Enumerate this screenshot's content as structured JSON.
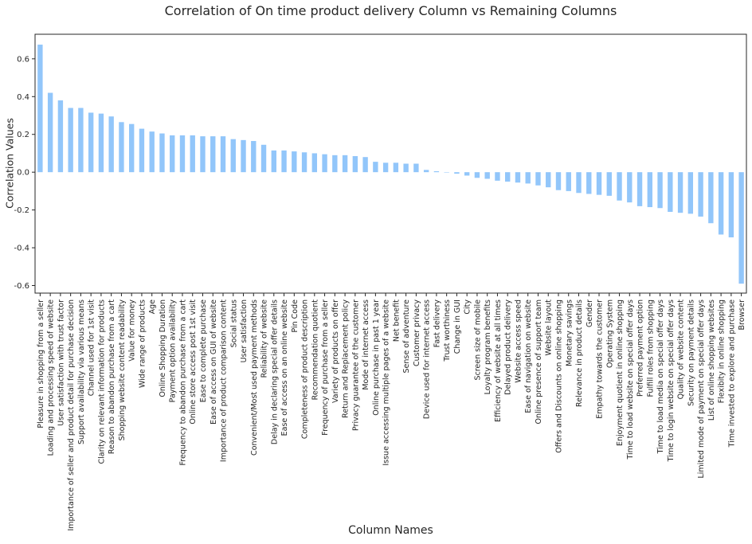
{
  "chart_data": {
    "type": "bar",
    "title": "Correlation of On time product delivery Column vs Remaining Columns",
    "xlabel": "Column Names",
    "ylabel": "Correlation Values",
    "ylim": [
      -0.64,
      0.73
    ],
    "yticks": [
      -0.6,
      -0.4,
      -0.2,
      0.0,
      0.2,
      0.4,
      0.6
    ],
    "ytick_labels": [
      "-0.6",
      "-0.4",
      "-0.2",
      "0.0",
      "0.2",
      "0.4",
      "0.6"
    ],
    "grid": false,
    "bar_color": "#92c6fa",
    "categories": [
      "Pleasure in shopping from a seller",
      "Loading and processing speed of website",
      "User satisfaction with trust factor",
      "Importance of seller and product detail for purchase decision",
      "Support availability via various means",
      "Channel used for 1st visit",
      "Clarity on relevant information for products",
      "Reason to abandon purchase from a cart",
      "Shopping website content readability",
      "Value for money",
      "Wide range of products",
      "Age",
      "Online Shopping Duration",
      "Payment option availability",
      "Frequency to abandon purchase from a cart",
      "Online store access post 1st visit",
      "Ease to complete purchase",
      "Ease of access on GUI of website",
      "Importance of product comparison content",
      "Social status",
      "User satisfaction",
      "Convenient/Most used payment methods",
      "Reliability of website",
      "Delay in declaring special offer details",
      "Ease of access on an online website",
      "Pin Code",
      "Completeness of product description",
      "Recommendation quotient",
      "Frequency of purchase from a seller",
      "Variety of products on offer",
      "Return and Replacement policy",
      "Privacy guarantee of the customer",
      "Mode of internet access",
      "Online purchase in past 1 year",
      "Issue accessing multiple pages of a website",
      "Net benefit",
      "Sense of adventure",
      "Customer privacy",
      "Device used for internet access",
      "Fast delivery",
      "Trust worthiness",
      "Change in GUI",
      "City",
      "Screen size of mobile",
      "Loyalty program benefits",
      "Efficiency of website at all times",
      "Delayed product delivery",
      "Website access speed",
      "Ease of navigation on website",
      "Online presence of support team",
      "Website layout",
      "Offers and Discounts on online shopping",
      "Monetary savings",
      "Relevance in product details",
      "Gender",
      "Empathy towards the customer",
      "Operating System",
      "Enjoyment quotient in online shopping",
      "Time to load website on special offer days",
      "Preferred payment option",
      "Fulfill roles from shopping",
      "Time to load media on special offer days",
      "Time to login website on special offer days",
      "Quality of website content",
      "Security on payment details",
      "Limited mode of payment on special offer days",
      "List of online shopping websites",
      "Flexibity in online shopping",
      "Time invested to explore and purchase",
      "Browser"
    ],
    "values": [
      0.675,
      0.42,
      0.38,
      0.34,
      0.34,
      0.315,
      0.31,
      0.295,
      0.265,
      0.255,
      0.23,
      0.215,
      0.205,
      0.195,
      0.195,
      0.195,
      0.19,
      0.19,
      0.19,
      0.175,
      0.17,
      0.165,
      0.145,
      0.115,
      0.115,
      0.11,
      0.105,
      0.1,
      0.095,
      0.09,
      0.09,
      0.085,
      0.08,
      0.055,
      0.05,
      0.05,
      0.045,
      0.045,
      0.012,
      0.005,
      0.0,
      -0.008,
      -0.018,
      -0.03,
      -0.035,
      -0.045,
      -0.05,
      -0.055,
      -0.06,
      -0.07,
      -0.08,
      -0.095,
      -0.1,
      -0.11,
      -0.115,
      -0.12,
      -0.125,
      -0.15,
      -0.16,
      -0.18,
      -0.185,
      -0.19,
      -0.21,
      -0.215,
      -0.22,
      -0.235,
      -0.27,
      -0.33,
      -0.345,
      -0.59
    ]
  }
}
